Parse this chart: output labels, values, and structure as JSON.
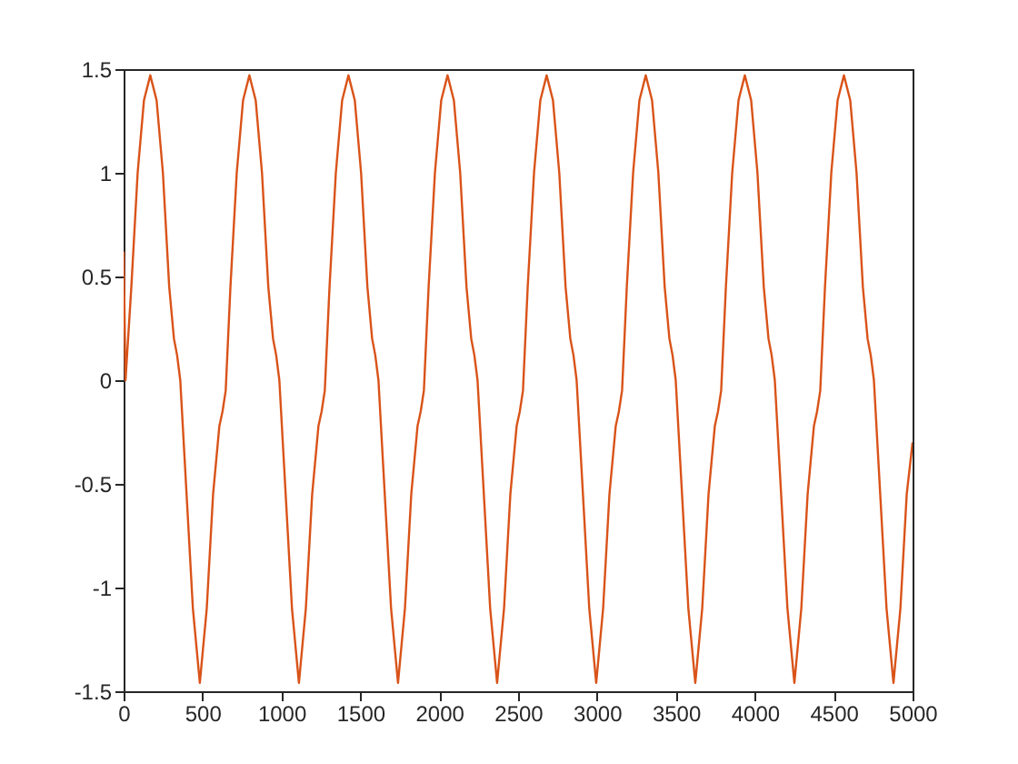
{
  "chart_data": {
    "type": "line",
    "xlim": [
      0,
      5000
    ],
    "ylim": [
      -1.5,
      1.5
    ],
    "xticks": [
      0,
      500,
      1000,
      1500,
      2000,
      2500,
      3000,
      3500,
      4000,
      4500,
      5000
    ],
    "yticks": [
      -1.5,
      -1,
      -0.5,
      0,
      0.5,
      1,
      1.5
    ],
    "grid": false,
    "marker": "none",
    "line_style": "solid",
    "series": [
      {
        "color": "#d95319",
        "x": [
          0,
          12,
          49,
          89,
          129,
          169,
          209,
          249,
          289,
          319,
          339,
          359,
          399,
          439,
          483,
          527,
          567,
          607,
          627,
          647,
          677,
          717,
          757,
          797,
          837,
          877,
          917,
          947,
          967,
          987,
          1027,
          1067,
          1111,
          1155,
          1195,
          1235,
          1255,
          1275,
          1305,
          1345,
          1385,
          1425,
          1465,
          1505,
          1545,
          1575,
          1595,
          1615,
          1655,
          1695,
          1739,
          1783,
          1823,
          1863,
          1883,
          1903,
          1933,
          1973,
          2013,
          2053,
          2093,
          2133,
          2173,
          2203,
          2223,
          2243,
          2283,
          2323,
          2367,
          2411,
          2451,
          2491,
          2511,
          2531,
          2561,
          2601,
          2641,
          2681,
          2721,
          2761,
          2801,
          2831,
          2851,
          2871,
          2911,
          2951,
          2995,
          3039,
          3079,
          3119,
          3139,
          3159,
          3189,
          3229,
          3269,
          3309,
          3349,
          3389,
          3429,
          3459,
          3479,
          3499,
          3539,
          3579,
          3623,
          3667,
          3707,
          3747,
          3767,
          3787,
          3817,
          3857,
          3897,
          3937,
          3977,
          4017,
          4057,
          4087,
          4107,
          4127,
          4167,
          4207,
          4251,
          4295,
          4335,
          4375,
          4395,
          4415,
          4445,
          4485,
          4525,
          4565,
          4605,
          4645,
          4685,
          4715,
          4735,
          4755,
          4795,
          4835,
          4879,
          4923,
          4963,
          5000
        ],
        "values": [
          0.62,
          0.0,
          0.45,
          1.0,
          1.35,
          1.47,
          1.35,
          1.0,
          0.45,
          0.2,
          0.12,
          0.0,
          -0.55,
          -1.1,
          -1.46,
          -1.1,
          -0.55,
          -0.22,
          -0.15,
          -0.05,
          0.45,
          1.0,
          1.35,
          1.47,
          1.35,
          1.0,
          0.45,
          0.2,
          0.12,
          0.0,
          -0.55,
          -1.1,
          -1.46,
          -1.1,
          -0.55,
          -0.22,
          -0.15,
          -0.05,
          0.45,
          1.0,
          1.35,
          1.47,
          1.35,
          1.0,
          0.45,
          0.2,
          0.12,
          0.0,
          -0.55,
          -1.1,
          -1.46,
          -1.1,
          -0.55,
          -0.22,
          -0.15,
          -0.05,
          0.45,
          1.0,
          1.35,
          1.47,
          1.35,
          1.0,
          0.45,
          0.2,
          0.12,
          0.0,
          -0.55,
          -1.1,
          -1.46,
          -1.1,
          -0.55,
          -0.22,
          -0.15,
          -0.05,
          0.45,
          1.0,
          1.35,
          1.47,
          1.35,
          1.0,
          0.45,
          0.2,
          0.12,
          0.0,
          -0.55,
          -1.1,
          -1.46,
          -1.1,
          -0.55,
          -0.22,
          -0.15,
          -0.05,
          0.45,
          1.0,
          1.35,
          1.47,
          1.35,
          1.0,
          0.45,
          0.2,
          0.12,
          0.0,
          -0.55,
          -1.1,
          -1.46,
          -1.1,
          -0.55,
          -0.22,
          -0.15,
          -0.05,
          0.45,
          1.0,
          1.35,
          1.47,
          1.35,
          1.0,
          0.45,
          0.2,
          0.12,
          0.0,
          -0.55,
          -1.1,
          -1.46,
          -1.1,
          -0.55,
          -0.22,
          -0.15,
          -0.05,
          0.45,
          1.0,
          1.35,
          1.47,
          1.35,
          1.0,
          0.45,
          0.2,
          0.12,
          0.0,
          -0.55,
          -1.1,
          -1.46,
          -1.1,
          -0.55,
          -0.3
        ]
      }
    ]
  }
}
